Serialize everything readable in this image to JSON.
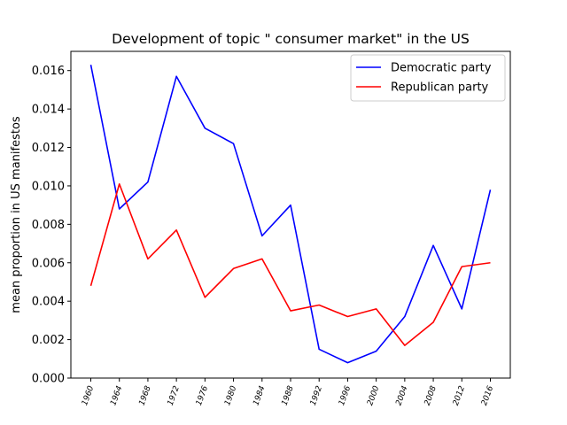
{
  "chart_data": {
    "type": "line",
    "title": "Development of topic \" consumer market\" in the US",
    "xlabel": "",
    "ylabel": "mean proportion in US manifestos",
    "categories": [
      "1960",
      "1964",
      "1968",
      "1972",
      "1976",
      "1980",
      "1984",
      "1988",
      "1992",
      "1996",
      "2000",
      "2004",
      "2008",
      "2012",
      "2016"
    ],
    "ylim": [
      0,
      0.017
    ],
    "yticks": [
      "0.000",
      "0.002",
      "0.004",
      "0.006",
      "0.008",
      "0.010",
      "0.012",
      "0.014",
      "0.016"
    ],
    "grid": false,
    "legend_position": "top-right",
    "series": [
      {
        "name": "Democratic party",
        "color": "#0000ff",
        "values": [
          0.0163,
          0.0088,
          0.0102,
          0.0157,
          0.013,
          0.0122,
          0.0074,
          0.009,
          0.0015,
          0.0008,
          0.0014,
          0.0032,
          0.0069,
          0.0036,
          0.0098
        ]
      },
      {
        "name": "Republican party",
        "color": "#ff0000",
        "values": [
          0.0048,
          0.0101,
          0.0062,
          0.0077,
          0.0042,
          0.0057,
          0.0062,
          0.0035,
          0.0038,
          0.0032,
          0.0036,
          0.0017,
          0.0029,
          0.0058,
          0.006
        ]
      }
    ]
  }
}
